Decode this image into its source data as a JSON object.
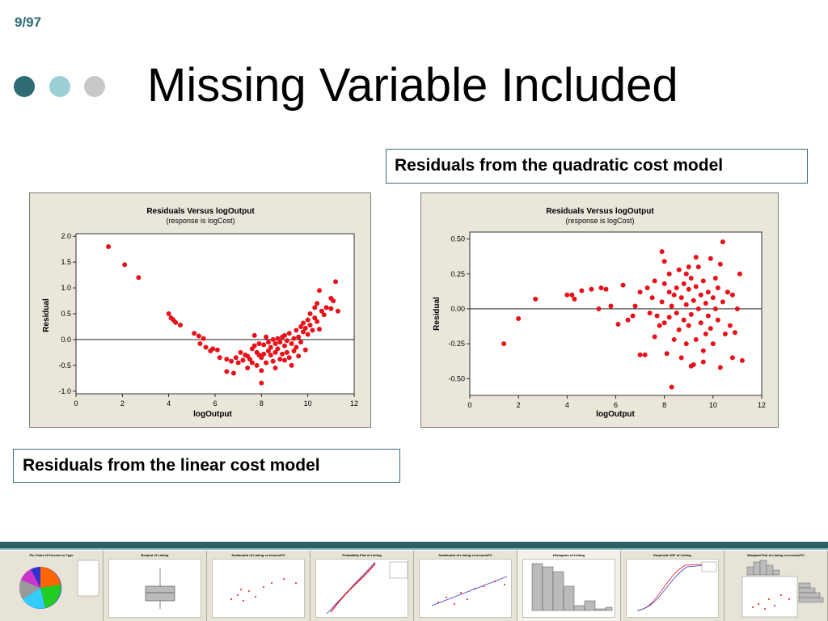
{
  "page_number": "9/97",
  "title": "Missing Variable Included",
  "callout_top": "Residuals from the quadratic cost model",
  "callout_bottom": "Residuals from the linear cost model",
  "colors": {
    "accent_dark": "#2e6b73",
    "accent_light": "#9ccfd4",
    "accent_gray": "#c8c8c8",
    "point": "#e8111a",
    "panel_bg": "#ebe6da"
  },
  "chart_data": [
    {
      "type": "scatter",
      "title": "Residuals Versus logOutput",
      "subtitle": "(response is logCost)",
      "xlabel": "logOutput",
      "ylabel": "Residual",
      "xlim": [
        0,
        12
      ],
      "ylim": [
        -1.05,
        2.05
      ],
      "xticks": [
        0,
        2,
        4,
        6,
        8,
        10,
        12
      ],
      "xtick_labels": [
        "0",
        "2",
        "4",
        "6",
        "8",
        "10",
        "12"
      ],
      "yticks": [
        2.0,
        1.5,
        1.0,
        0.5,
        0.0,
        -0.5,
        -1.0
      ],
      "ytick_labels": [
        "2.0",
        "1.5",
        "1.0",
        "0.5",
        "0.0",
        "-0.5",
        "-1.0"
      ],
      "reference_line": 0,
      "points": [
        [
          1.4,
          1.8
        ],
        [
          2.1,
          1.45
        ],
        [
          2.7,
          1.2
        ],
        [
          4.0,
          0.5
        ],
        [
          4.1,
          0.42
        ],
        [
          4.2,
          0.38
        ],
        [
          4.3,
          0.33
        ],
        [
          4.5,
          0.28
        ],
        [
          5.1,
          0.12
        ],
        [
          5.3,
          0.07
        ],
        [
          5.35,
          -0.08
        ],
        [
          5.5,
          0.02
        ],
        [
          5.6,
          -0.15
        ],
        [
          5.8,
          -0.22
        ],
        [
          5.9,
          -0.18
        ],
        [
          6.1,
          -0.2
        ],
        [
          6.2,
          -0.35
        ],
        [
          6.5,
          -0.38
        ],
        [
          6.5,
          -0.62
        ],
        [
          6.7,
          -0.42
        ],
        [
          6.8,
          -0.65
        ],
        [
          6.9,
          -0.35
        ],
        [
          7.0,
          -0.45
        ],
        [
          7.1,
          -0.25
        ],
        [
          7.2,
          -0.4
        ],
        [
          7.3,
          -0.3
        ],
        [
          7.4,
          -0.55
        ],
        [
          7.4,
          -0.32
        ],
        [
          7.5,
          -0.38
        ],
        [
          7.6,
          -0.18
        ],
        [
          7.6,
          -0.45
        ],
        [
          7.7,
          -0.12
        ],
        [
          7.7,
          0.08
        ],
        [
          7.8,
          -0.5
        ],
        [
          7.8,
          -0.25
        ],
        [
          7.9,
          -0.3
        ],
        [
          7.9,
          -0.08
        ],
        [
          8.0,
          -0.6
        ],
        [
          8.0,
          -0.35
        ],
        [
          8.0,
          -0.84
        ],
        [
          8.1,
          -0.1
        ],
        [
          8.1,
          -0.28
        ],
        [
          8.2,
          -0.45
        ],
        [
          8.2,
          0.05
        ],
        [
          8.3,
          -0.22
        ],
        [
          8.3,
          -0.05
        ],
        [
          8.4,
          -0.3
        ],
        [
          8.4,
          -0.15
        ],
        [
          8.5,
          -0.42
        ],
        [
          8.5,
          0.0
        ],
        [
          8.6,
          -0.25
        ],
        [
          8.6,
          -0.08
        ],
        [
          8.6,
          -0.55
        ],
        [
          8.7,
          -0.18
        ],
        [
          8.7,
          0.02
        ],
        [
          8.8,
          -0.38
        ],
        [
          8.8,
          -0.05
        ],
        [
          8.9,
          -0.28
        ],
        [
          8.9,
          0.05
        ],
        [
          9.0,
          -0.12
        ],
        [
          9.0,
          -0.4
        ],
        [
          9.0,
          0.08
        ],
        [
          9.1,
          -0.25
        ],
        [
          9.1,
          -0.02
        ],
        [
          9.2,
          -0.35
        ],
        [
          9.2,
          0.12
        ],
        [
          9.3,
          -0.08
        ],
        [
          9.3,
          -0.5
        ],
        [
          9.4,
          0.02
        ],
        [
          9.4,
          -0.22
        ],
        [
          9.5,
          0.18
        ],
        [
          9.5,
          -0.15
        ],
        [
          9.6,
          0.05
        ],
        [
          9.6,
          -0.32
        ],
        [
          9.7,
          0.25
        ],
        [
          9.7,
          -0.05
        ],
        [
          9.8,
          0.15
        ],
        [
          9.8,
          0.32
        ],
        [
          9.9,
          0.22
        ],
        [
          9.9,
          -0.2
        ],
        [
          10.0,
          0.38
        ],
        [
          10.0,
          0.1
        ],
        [
          10.1,
          0.28
        ],
        [
          10.1,
          0.5
        ],
        [
          10.2,
          0.18
        ],
        [
          10.3,
          0.42
        ],
        [
          10.3,
          0.62
        ],
        [
          10.4,
          0.7
        ],
        [
          10.4,
          0.35
        ],
        [
          10.5,
          0.95
        ],
        [
          10.5,
          0.2
        ],
        [
          10.6,
          0.55
        ],
        [
          10.7,
          0.48
        ],
        [
          10.8,
          0.62
        ],
        [
          11.0,
          0.8
        ],
        [
          11.1,
          0.75
        ],
        [
          11.0,
          0.6
        ],
        [
          11.3,
          0.55
        ],
        [
          11.2,
          1.12
        ]
      ]
    },
    {
      "type": "scatter",
      "title": "Residuals Versus logOutput",
      "subtitle": "(response is logCost)",
      "xlabel": "logOutput",
      "ylabel": "Residual",
      "xlim": [
        0,
        12
      ],
      "ylim": [
        -0.62,
        0.55
      ],
      "xticks": [
        0,
        2,
        4,
        6,
        8,
        10,
        12
      ],
      "xtick_labels": [
        "0",
        "2",
        "4",
        "6",
        "8",
        "10",
        "12"
      ],
      "yticks": [
        0.5,
        0.25,
        0.0,
        -0.25,
        -0.5
      ],
      "ytick_labels": [
        "0.50",
        "0.25",
        "0.00",
        "-0.25",
        "-0.50"
      ],
      "reference_line": 0,
      "points": [
        [
          1.4,
          -0.25
        ],
        [
          2.0,
          -0.07
        ],
        [
          2.7,
          0.07
        ],
        [
          4.0,
          0.1
        ],
        [
          4.2,
          0.1
        ],
        [
          4.3,
          0.07
        ],
        [
          4.6,
          0.13
        ],
        [
          5.0,
          0.14
        ],
        [
          5.3,
          0.0
        ],
        [
          5.4,
          0.15
        ],
        [
          5.6,
          0.14
        ],
        [
          5.8,
          0.02
        ],
        [
          6.1,
          -0.11
        ],
        [
          6.3,
          0.17
        ],
        [
          6.5,
          -0.08
        ],
        [
          6.7,
          -0.05
        ],
        [
          6.8,
          0.02
        ],
        [
          7.0,
          0.12
        ],
        [
          7.0,
          -0.33
        ],
        [
          7.2,
          -0.33
        ],
        [
          7.3,
          0.15
        ],
        [
          7.4,
          -0.03
        ],
        [
          7.5,
          0.08
        ],
        [
          7.6,
          -0.2
        ],
        [
          7.6,
          0.2
        ],
        [
          7.7,
          -0.05
        ],
        [
          7.8,
          -0.12
        ],
        [
          7.9,
          0.05
        ],
        [
          7.9,
          0.41
        ],
        [
          8.0,
          -0.1
        ],
        [
          8.0,
          0.18
        ],
        [
          8.1,
          -0.32
        ],
        [
          8.2,
          0.25
        ],
        [
          8.2,
          -0.06
        ],
        [
          8.3,
          0.02
        ],
        [
          8.3,
          -0.56
        ],
        [
          8.4,
          0.1
        ],
        [
          8.4,
          -0.22
        ],
        [
          8.5,
          0.15
        ],
        [
          8.5,
          -0.03
        ],
        [
          8.6,
          0.28
        ],
        [
          8.6,
          -0.15
        ],
        [
          8.7,
          0.08
        ],
        [
          8.7,
          -0.35
        ],
        [
          8.8,
          0.18
        ],
        [
          8.8,
          -0.08
        ],
        [
          8.9,
          0.03
        ],
        [
          8.9,
          -0.25
        ],
        [
          9.0,
          0.14
        ],
        [
          9.0,
          -0.12
        ],
        [
          9.1,
          0.22
        ],
        [
          9.1,
          -0.04
        ],
        [
          9.2,
          0.06
        ],
        [
          9.2,
          -0.4
        ],
        [
          9.3,
          0.16
        ],
        [
          9.3,
          -0.22
        ],
        [
          9.4,
          0.0
        ],
        [
          9.4,
          0.3
        ],
        [
          9.5,
          -0.1
        ],
        [
          9.5,
          0.1
        ],
        [
          9.6,
          -0.3
        ],
        [
          9.6,
          0.2
        ],
        [
          9.7,
          0.04
        ],
        [
          9.7,
          -0.18
        ],
        [
          9.8,
          0.12
        ],
        [
          9.8,
          -0.05
        ],
        [
          9.9,
          0.36
        ],
        [
          9.9,
          -0.14
        ],
        [
          10.0,
          0.08
        ],
        [
          10.0,
          -0.25
        ],
        [
          10.1,
          0.22
        ],
        [
          10.1,
          0.0
        ],
        [
          10.2,
          -0.08
        ],
        [
          10.2,
          0.15
        ],
        [
          10.3,
          0.32
        ],
        [
          10.3,
          -0.42
        ],
        [
          10.4,
          0.05
        ],
        [
          10.4,
          0.48
        ],
        [
          10.5,
          -0.18
        ],
        [
          10.6,
          0.12
        ],
        [
          10.7,
          -0.12
        ],
        [
          10.8,
          0.1
        ],
        [
          10.9,
          -0.17
        ],
        [
          11.0,
          0.0
        ],
        [
          11.1,
          0.25
        ],
        [
          11.2,
          -0.37
        ],
        [
          9.0,
          0.3
        ],
        [
          8.0,
          0.34
        ],
        [
          9.6,
          -0.38
        ],
        [
          8.9,
          0.25
        ],
        [
          9.3,
          0.37
        ],
        [
          10.8,
          -0.35
        ],
        [
          9.1,
          -0.41
        ],
        [
          8.2,
          0.12
        ]
      ]
    }
  ],
  "thumbnails": [
    {
      "title": "Pie Chart of Percent vs Type"
    },
    {
      "title": "Boxplot of Listing"
    },
    {
      "title": "Scatterplot of Listing vs IncomePC"
    },
    {
      "title": "Probability Plot of Listing"
    },
    {
      "title": "Scatterplot of Listing vs IncomePC"
    },
    {
      "title": "Histogram of Listing"
    },
    {
      "title": "Empirical CDF of Listing"
    },
    {
      "title": "Marginal Plot of Listing vs IncomePC"
    }
  ]
}
